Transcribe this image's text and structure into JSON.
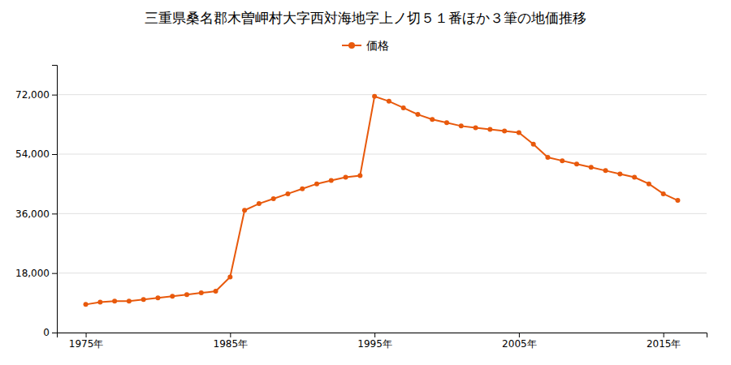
{
  "chart_data": {
    "type": "line",
    "title": "三重県桑名郡木曽岬村大字西対海地字上ノ切５１番ほか３筆の地価推移",
    "x": [
      1975,
      1976,
      1977,
      1978,
      1979,
      1980,
      1981,
      1982,
      1983,
      1984,
      1985,
      1986,
      1987,
      1988,
      1989,
      1990,
      1991,
      1992,
      1993,
      1994,
      1995,
      1996,
      1997,
      1998,
      1999,
      2000,
      2001,
      2002,
      2003,
      2004,
      2005,
      2006,
      2007,
      2008,
      2009,
      2010,
      2011,
      2012,
      2013,
      2014,
      2015,
      2016
    ],
    "xlim": [
      1973,
      2018
    ],
    "xticks": [
      {
        "value": 1975,
        "label": "1975年"
      },
      {
        "value": 1985,
        "label": "1985年"
      },
      {
        "value": 1995,
        "label": "1995年"
      },
      {
        "value": 2005,
        "label": "2005年"
      },
      {
        "value": 2015,
        "label": "2015年"
      }
    ],
    "ylim": [
      0,
      81000
    ],
    "yticks": [
      0,
      {
        "value": 18000,
        "label": "18,000"
      },
      {
        "value": 36000,
        "label": "36,000"
      },
      {
        "value": 54000,
        "label": "54,000"
      },
      {
        "value": 72000,
        "label": "72,000"
      }
    ],
    "grid": true,
    "legend": "top",
    "series": [
      {
        "name": "価格",
        "color": "#e8590c",
        "marker": "circle",
        "values": [
          8500,
          9200,
          9500,
          9500,
          10000,
          10500,
          11000,
          11500,
          12000,
          12500,
          16800,
          37000,
          39000,
          40500,
          42000,
          43500,
          45000,
          46000,
          47000,
          47500,
          71500,
          70000,
          68000,
          66000,
          64500,
          63500,
          62500,
          62000,
          61500,
          61000,
          60500,
          57000,
          53000,
          52000,
          51000,
          50000,
          49000,
          48000,
          47000,
          45000,
          42000,
          40000
        ]
      }
    ]
  }
}
